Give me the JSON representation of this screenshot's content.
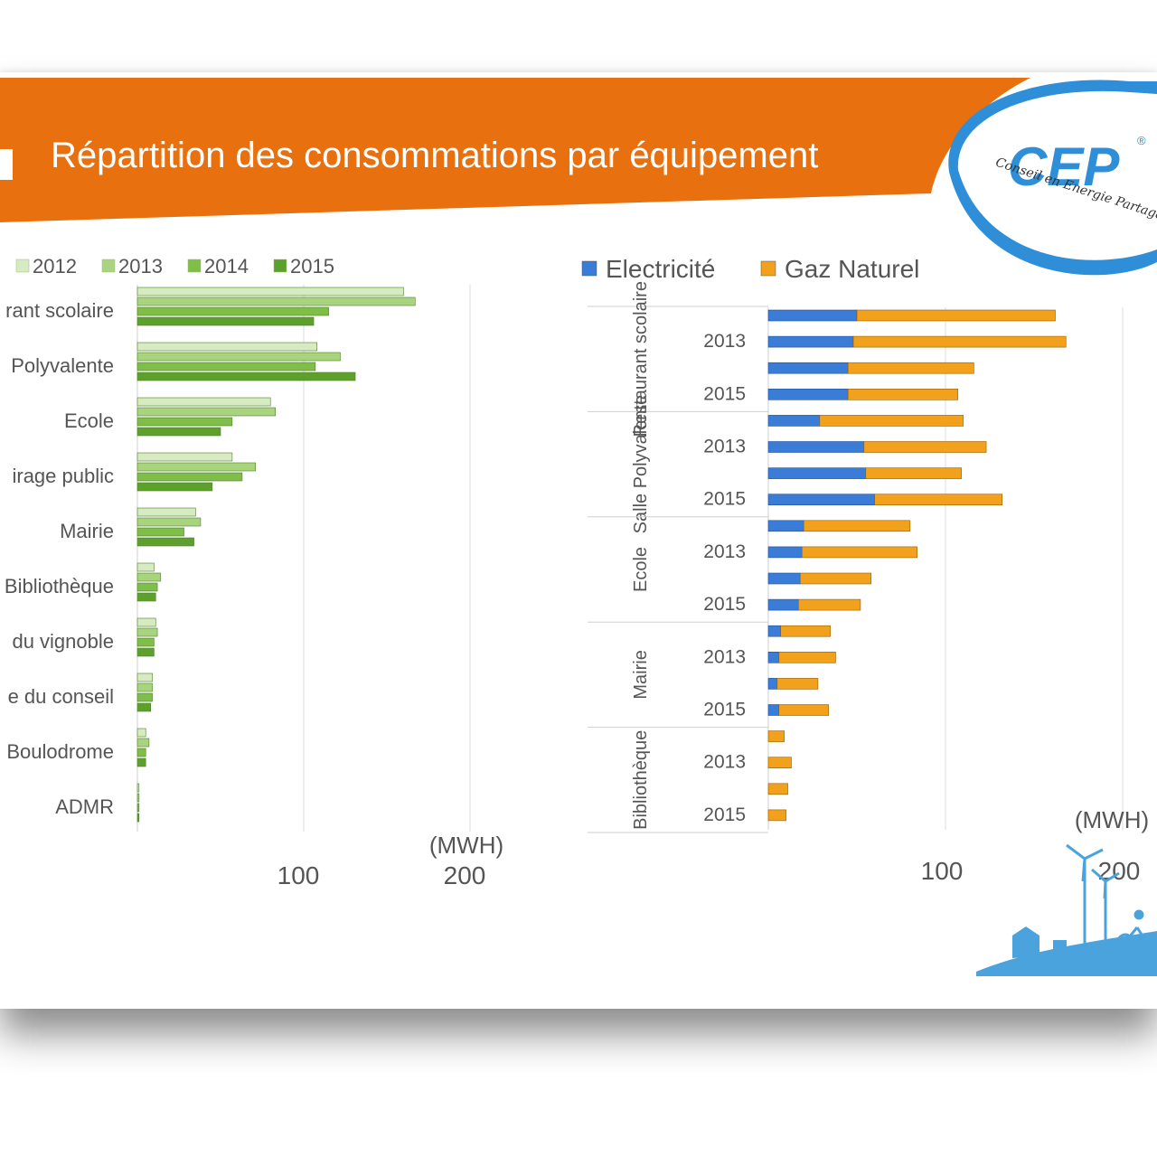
{
  "slide": {
    "title": "Répartition des consommations par équipement"
  },
  "logo": {
    "text": "CEP",
    "tagline": "Conseil en Energie Partagé",
    "registered": "®"
  },
  "colors": {
    "banner": "#E8700F",
    "electricite": "#3A7CD6",
    "gaz": "#F2A11D",
    "green2012": "#D6EBC2",
    "green2013": "#A9D47E",
    "green2014": "#7FBE48",
    "green2015": "#5EA02C",
    "logo_blue": "#2E8FD8"
  },
  "chart_data": [
    {
      "type": "bar",
      "orientation": "horizontal",
      "unit_label": "(MWH)",
      "tick_labels": [
        "100",
        "200"
      ],
      "xlim": [
        0,
        200
      ],
      "grid": true,
      "legend_position": "top",
      "categories": [
        "rant scolaire",
        "Polyvalente",
        "Ecole",
        "irage public",
        "Mairie",
        "Bibliothèque",
        "du vignoble",
        "e du conseil",
        "Boulodrome",
        "ADMR"
      ],
      "series": [
        {
          "name": "2012",
          "values": [
            160,
            108,
            80,
            57,
            35,
            10,
            11,
            9,
            5,
            1
          ]
        },
        {
          "name": "2013",
          "values": [
            167,
            122,
            83,
            71,
            38,
            14,
            12,
            9,
            7,
            1
          ]
        },
        {
          "name": "2014",
          "values": [
            115,
            107,
            57,
            63,
            28,
            12,
            10,
            9,
            5,
            1
          ]
        },
        {
          "name": "2015",
          "values": [
            106,
            131,
            50,
            45,
            34,
            11,
            10,
            8,
            5,
            1
          ]
        }
      ]
    },
    {
      "type": "bar",
      "orientation": "horizontal",
      "stacked": true,
      "unit_label": "(MWH)",
      "tick_labels": [
        "100",
        "200"
      ],
      "xlim": [
        0,
        200
      ],
      "grid": true,
      "legend_position": "top",
      "groups": [
        {
          "label": "Restaurant scolaire",
          "years": [
            "2013",
            "2015"
          ]
        },
        {
          "label": "Salle Polyvalente",
          "years": [
            "2013",
            "2015"
          ]
        },
        {
          "label": "Ecole",
          "years": [
            "2013",
            "2015"
          ]
        },
        {
          "label": "Mairie",
          "years": [
            "2013",
            "2015"
          ]
        },
        {
          "label": "Bibliothèque",
          "years": [
            "2013",
            "2015"
          ]
        }
      ],
      "series": [
        {
          "name": "Electricité",
          "values": [
            50,
            48,
            45,
            45,
            29,
            54,
            55,
            60,
            20,
            19,
            18,
            17,
            7,
            6,
            5,
            6,
            0,
            0,
            0,
            0
          ]
        },
        {
          "name": "Gaz Naturel",
          "values": [
            112,
            120,
            71,
            62,
            81,
            69,
            54,
            72,
            60,
            65,
            40,
            35,
            28,
            32,
            23,
            28,
            9,
            13,
            11,
            10
          ]
        }
      ]
    }
  ]
}
